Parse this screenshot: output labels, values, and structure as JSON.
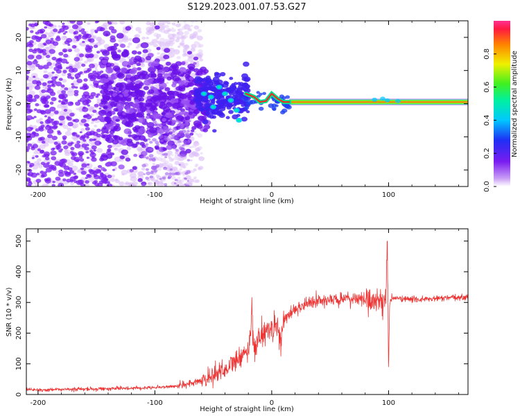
{
  "title": "S129.2023.001.07.53.G27",
  "colors": {
    "snr_line": "#ee3333",
    "frame": "#000000",
    "scatter_purple": "#7a1cf0",
    "scatter_light": "#d9b8f7"
  },
  "chart_data": [
    {
      "id": "spectrogram",
      "type": "heatmap",
      "xlabel": "Height of straight line (km)",
      "ylabel": "Frequency (Hz)",
      "xlim": [
        -210,
        168
      ],
      "ylim": [
        -25,
        25
      ],
      "xticks": [
        -200,
        -100,
        0,
        100
      ],
      "yticks": [
        -20,
        -10,
        0,
        10,
        20
      ],
      "grid": false,
      "colormap": "rainbow",
      "ridge_band": {
        "x_start": 15,
        "x_end": 168,
        "frequency_hz": 0.5
      },
      "colorbar": {
        "label": "Normalized spectral amplitude",
        "range": [
          0.0,
          1.0
        ],
        "ticks": [
          0.0,
          0.2,
          0.4,
          0.6,
          0.8
        ]
      }
    },
    {
      "id": "snr",
      "type": "line",
      "xlabel": "Height of straight line (km)",
      "ylabel": "SNR (10 * v/v)",
      "xlim": [
        -210,
        168
      ],
      "ylim": [
        0,
        540
      ],
      "xticks": [
        -200,
        -100,
        0,
        100
      ],
      "yticks": [
        0,
        100,
        200,
        300,
        400,
        500
      ],
      "grid": false,
      "series": [
        {
          "x": [
            -210,
            -190,
            -170,
            -150,
            -130,
            -110,
            -90,
            -80,
            -70,
            -65,
            -60,
            -55,
            -50,
            -45,
            -40,
            -35,
            -30,
            -25,
            -20,
            -18,
            -17,
            -16,
            -15,
            -13,
            -10,
            -5,
            0,
            5,
            8,
            10,
            15,
            20,
            30,
            40,
            50,
            60,
            70,
            80,
            85,
            90,
            95,
            98,
            99,
            100,
            101,
            102,
            105,
            110,
            120,
            130,
            140,
            150,
            160,
            168
          ],
          "y": [
            15,
            15,
            17,
            18,
            20,
            22,
            25,
            28,
            35,
            40,
            45,
            55,
            65,
            75,
            85,
            95,
            110,
            125,
            140,
            200,
            300,
            200,
            150,
            170,
            190,
            205,
            215,
            230,
            160,
            240,
            260,
            280,
            295,
            305,
            308,
            310,
            312,
            310,
            305,
            310,
            300,
            330,
            520,
            80,
            300,
            310,
            315,
            312,
            310,
            310,
            312,
            315,
            315,
            318
          ]
        }
      ]
    }
  ]
}
